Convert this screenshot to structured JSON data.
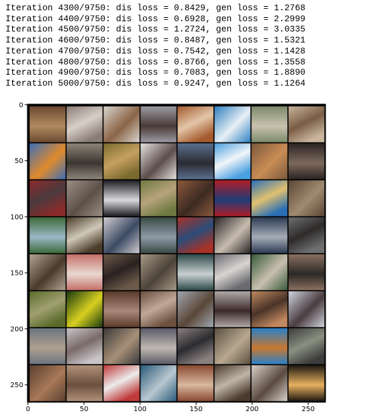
{
  "log": [
    "Iteration 4300/9750: dis loss = 0.8429, gen loss = 1.2768",
    "Iteration 4400/9750: dis loss = 0.6928, gen loss = 2.2999",
    "Iteration 4500/9750: dis loss = 1.2724, gen loss = 3.0335",
    "Iteration 4600/9750: dis loss = 0.8487, gen loss = 1.5321",
    "Iteration 4700/9750: dis loss = 0.7542, gen loss = 1.1428",
    "Iteration 4800/9750: dis loss = 0.8766, gen loss = 1.3558",
    "Iteration 4900/9750: dis loss = 0.7083, gen loss = 1.8890",
    "Iteration 5000/9750: dis loss = 0.9247, gen loss = 1.1264"
  ],
  "plot": {
    "type": "image",
    "xlim": [
      -0.5,
      265.5
    ],
    "ylim": [
      265.5,
      -0.5
    ],
    "xticks": [
      0,
      50,
      100,
      150,
      200,
      250
    ],
    "yticks": [
      0,
      50,
      100,
      150,
      200,
      250
    ]
  }
}
